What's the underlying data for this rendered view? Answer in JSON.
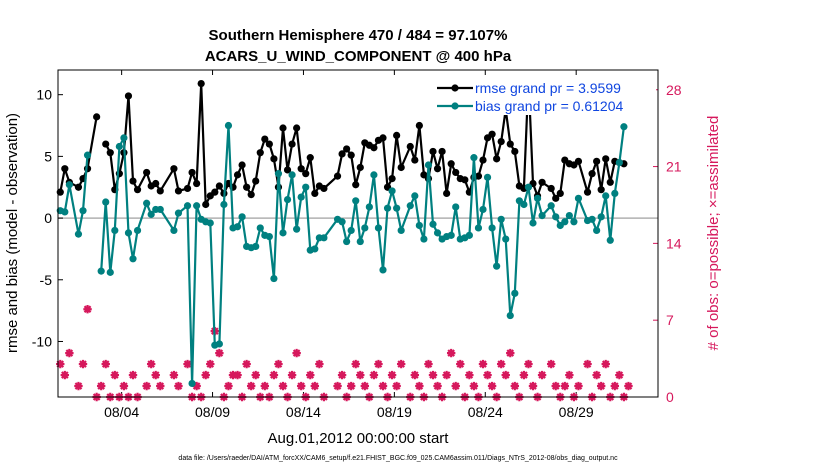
{
  "chart_data": {
    "type": "line",
    "title_line1": "Southern Hemisphere 470 / 484 = 97.107%",
    "title_line2": "ACARS_U_WIND_COMPONENT @ 400 hPa",
    "xlabel": "Aug.01,2012 00:00:00 start",
    "ylabel_left": "rmse and bias (model - observation)",
    "ylabel_right": "# of obs: o=possible; ×=assimilated",
    "footer": "data file: /Users/raeder/DAI/ATM_forcXX/CAM6_setup/f.e21.FHIST_BGC.f09_025.CAM6assim.011/Diags_NTrS_2012-08/obs_diag_output.nc",
    "xlim": [
      0,
      33
    ],
    "ylim_left": [
      -14.5,
      12
    ],
    "ylim_right": [
      0,
      29.8
    ],
    "x_ticks": [
      3.5,
      8.5,
      13.5,
      18.5,
      23.5,
      28.5
    ],
    "x_tick_labels": [
      "08/04",
      "08/09",
      "08/14",
      "08/19",
      "08/24",
      "08/29"
    ],
    "y_ticks_left": [
      -10,
      -5,
      0,
      5,
      10
    ],
    "y_tick_labels_left": [
      "-10",
      "-5",
      "0",
      "5",
      "10"
    ],
    "y_ticks_right": [
      0,
      7,
      14,
      21,
      28
    ],
    "y_tick_labels_right": [
      "0",
      "7",
      "14",
      "21",
      "28"
    ],
    "colors": {
      "rmse": "#000000",
      "bias": "#008080",
      "obs": "#d6185c",
      "zero": "#b0b0b0",
      "legend_text": "#1046e0"
    },
    "series": [
      {
        "name": "rmse grand pr = 3.9599",
        "color": "#000000",
        "x": [
          0.125,
          0.375,
          0.625,
          1.125,
          1.375,
          1.625,
          2.125,
          2.375,
          2.625,
          2.875,
          3.125,
          3.375,
          3.625,
          3.875,
          4.125,
          4.375,
          4.875,
          5.125,
          5.375,
          5.625,
          6.375,
          6.625,
          7.125,
          7.375,
          7.625,
          7.875,
          8.125,
          8.375,
          8.625,
          8.875,
          9.125,
          9.375,
          9.625,
          9.875,
          10.125,
          10.375,
          10.625,
          10.875,
          11.125,
          11.375,
          11.625,
          11.875,
          12.125,
          12.375,
          12.625,
          12.875,
          13.125,
          13.375,
          13.625,
          13.875,
          14.125,
          14.375,
          14.625,
          15.375,
          15.625,
          15.875,
          16.125,
          16.375,
          16.625,
          16.875,
          17.125,
          17.375,
          17.625,
          17.875,
          18.125,
          18.375,
          18.625,
          18.875,
          19.375,
          19.625,
          19.875,
          20.125,
          20.375,
          20.625,
          20.875,
          21.125,
          21.375,
          21.625,
          21.875,
          22.125,
          22.375,
          22.625,
          22.875,
          23.125,
          23.375,
          23.625,
          23.875,
          24.125,
          24.375,
          24.625,
          24.875,
          25.125,
          25.375,
          25.625,
          25.875,
          26.125,
          26.375,
          26.625,
          27.125,
          27.375,
          27.625,
          27.875,
          28.125,
          28.375,
          28.625,
          29.125,
          29.375,
          29.625,
          29.875,
          30.125,
          30.375,
          30.625,
          30.875,
          31.125,
          31.375
        ],
        "values": [
          2.1,
          4.0,
          2.9,
          2.5,
          3.2,
          4.0,
          8.2,
          null,
          6.0,
          5.3,
          2.3,
          3.6,
          5.3,
          9.9,
          3.0,
          2.3,
          3.7,
          2.6,
          2.8,
          2.2,
          4.0,
          2.2,
          2.4,
          3.7,
          2.8,
          10.9,
          1.1,
          1.8,
          2.1,
          2.6,
          2.0,
          2.8,
          2.5,
          3.5,
          4.3,
          2.5,
          1.9,
          3.0,
          5.3,
          6.4,
          6.0,
          4.8,
          2.5,
          7.3,
          3.9,
          6.0,
          7.3,
          4.0,
          3.6,
          4.9,
          2.0,
          2.6,
          2.4,
          3.4,
          5.2,
          5.6,
          5.1,
          2.7,
          4.1,
          6.1,
          5.9,
          5.7,
          6.3,
          6.5,
          2.5,
          3.2,
          6.7,
          4.1,
          5.8,
          4.7,
          7.5,
          3.5,
          3.2,
          5.4,
          4.0,
          5.4,
          2.0,
          4.4,
          3.7,
          3.2,
          3.1,
          2.1,
          3.3,
          3.4,
          4.7,
          6.5,
          6.8,
          4.8,
          6.2,
          8.8,
          6.0,
          5.4,
          2.6,
          2.4,
          11.3,
          2.8,
          1.8,
          2.9,
          2.4,
          1.6,
          2.0,
          4.7,
          4.4,
          4.3,
          4.6,
          2.1,
          3.6,
          4.6,
          2.3,
          4.8,
          2.9,
          4.6,
          4.5,
          4.4,
          null
        ],
        "marker": "circle"
      },
      {
        "name": "bias grand pr = 0.61204",
        "color": "#008080",
        "x": [
          0.125,
          0.375,
          0.625,
          1.125,
          1.375,
          1.625,
          2.125,
          2.375,
          2.625,
          2.875,
          3.125,
          3.375,
          3.625,
          3.875,
          4.125,
          4.375,
          4.875,
          5.125,
          5.375,
          5.625,
          6.375,
          6.625,
          7.125,
          7.375,
          7.625,
          7.875,
          8.125,
          8.375,
          8.625,
          8.875,
          9.125,
          9.375,
          9.625,
          9.875,
          10.125,
          10.375,
          10.625,
          10.875,
          11.125,
          11.375,
          11.625,
          11.875,
          12.125,
          12.375,
          12.625,
          12.875,
          13.125,
          13.375,
          13.625,
          13.875,
          14.125,
          14.375,
          14.625,
          15.375,
          15.625,
          15.875,
          16.125,
          16.375,
          16.625,
          16.875,
          17.125,
          17.375,
          17.625,
          17.875,
          18.125,
          18.375,
          18.625,
          18.875,
          19.375,
          19.625,
          19.875,
          20.125,
          20.375,
          20.625,
          20.875,
          21.125,
          21.375,
          21.625,
          21.875,
          22.125,
          22.375,
          22.625,
          22.875,
          23.125,
          23.375,
          23.625,
          23.875,
          24.125,
          24.375,
          24.625,
          24.875,
          25.125,
          25.375,
          25.625,
          25.875,
          26.125,
          26.375,
          26.625,
          27.125,
          27.375,
          27.625,
          27.875,
          28.125,
          28.375,
          28.625,
          29.125,
          29.375,
          29.625,
          29.875,
          30.125,
          30.375,
          30.625,
          30.875,
          31.125,
          31.375
        ],
        "values": [
          0.6,
          0.5,
          2.7,
          -1.3,
          0.6,
          5.1,
          null,
          -4.3,
          1.3,
          -4.4,
          -1.0,
          5.8,
          6.5,
          -1.2,
          -3.3,
          -1.0,
          1.2,
          0.3,
          0.7,
          0.7,
          -1.0,
          0.4,
          1.0,
          -13.4,
          1.0,
          -0.1,
          -0.3,
          -0.4,
          -10.3,
          -10.2,
          1.1,
          7.5,
          -0.8,
          -0.7,
          0.1,
          -2.3,
          -2.4,
          -2.3,
          -0.8,
          -1.4,
          -1.5,
          -4.9,
          3.6,
          -1.2,
          1.5,
          3.5,
          -0.9,
          1.7,
          2.5,
          -2.6,
          -2.5,
          -1.6,
          -1.6,
          -0.1,
          -0.3,
          -1.9,
          -1.0,
          1.4,
          -1.9,
          -0.8,
          0.9,
          3.5,
          -0.8,
          -4.2,
          0.8,
          2.2,
          0.8,
          -1.0,
          1.0,
          1.8,
          -0.6,
          -1.7,
          4.3,
          -0.5,
          -1.2,
          -1.7,
          -1.5,
          -1.4,
          0.9,
          -1.7,
          -1.6,
          -1.4,
          4.9,
          -0.8,
          0.7,
          3.3,
          -0.8,
          -3.9,
          -0.1,
          -1.7,
          -7.9,
          -6.1,
          1.4,
          1.1,
          2.5,
          -0.4,
          1.6,
          0.2,
          1.0,
          0.1,
          -0.6,
          -0.3,
          0.2,
          -0.3,
          1.6,
          -0.2,
          -0.1,
          -1.0,
          0.1,
          1.8,
          -1.8,
          2.0,
          4.5,
          7.4,
          null
        ],
        "marker": "circle"
      },
      {
        "name": "# obs assimilated",
        "color": "#d6185c",
        "x": [
          0.125,
          0.375,
          0.625,
          1.125,
          1.375,
          1.625,
          2.125,
          2.375,
          2.625,
          2.875,
          3.125,
          3.375,
          3.625,
          3.875,
          4.125,
          4.375,
          4.875,
          5.125,
          5.375,
          5.625,
          6.375,
          6.625,
          7.125,
          7.375,
          7.625,
          7.875,
          8.125,
          8.375,
          8.625,
          8.875,
          9.125,
          9.375,
          9.625,
          9.875,
          10.125,
          10.375,
          10.625,
          10.875,
          11.125,
          11.375,
          11.625,
          11.875,
          12.125,
          12.375,
          12.625,
          12.875,
          13.125,
          13.375,
          13.625,
          13.875,
          14.125,
          14.375,
          14.625,
          15.375,
          15.625,
          15.875,
          16.125,
          16.375,
          16.625,
          16.875,
          17.125,
          17.375,
          17.625,
          17.875,
          18.125,
          18.375,
          18.625,
          18.875,
          19.375,
          19.625,
          19.875,
          20.125,
          20.375,
          20.625,
          20.875,
          21.125,
          21.375,
          21.625,
          21.875,
          22.125,
          22.375,
          22.625,
          22.875,
          23.125,
          23.375,
          23.625,
          23.875,
          24.125,
          24.375,
          24.625,
          24.875,
          25.125,
          25.375,
          25.625,
          25.875,
          26.125,
          26.375,
          26.625,
          27.125,
          27.375,
          27.625,
          27.875,
          28.125,
          28.375,
          28.625,
          29.125,
          29.375,
          29.625,
          29.875,
          30.125,
          30.375,
          30.625,
          30.875,
          31.125,
          31.375
        ],
        "values": [
          3,
          2,
          4,
          1,
          3,
          8,
          0,
          1,
          3,
          0,
          2,
          0,
          1,
          0,
          2,
          0,
          1,
          3,
          2,
          1,
          2,
          1,
          3,
          0,
          1,
          0,
          2,
          3,
          6,
          4,
          0,
          1,
          2,
          2,
          0,
          3,
          1,
          2,
          0,
          1,
          0,
          2,
          3,
          1,
          0,
          2,
          4,
          1,
          0,
          2,
          1,
          3,
          0,
          1,
          2,
          0,
          1,
          3,
          2,
          1,
          0,
          2,
          3,
          1,
          0,
          2,
          1,
          3,
          0,
          2,
          1,
          0,
          3,
          2,
          1,
          0,
          2,
          4,
          1,
          3,
          0,
          2,
          1,
          0,
          3,
          2,
          1,
          0,
          3,
          2,
          4,
          1,
          0,
          2,
          3,
          1,
          0,
          2,
          3,
          1,
          0,
          1,
          2,
          0,
          1,
          3,
          0,
          2,
          1,
          3,
          0,
          1,
          2,
          0,
          1
        ],
        "marker": "asterisk"
      }
    ],
    "legend": [
      "rmse grand pr = 3.9599",
      "bias grand pr = 0.61204"
    ]
  }
}
